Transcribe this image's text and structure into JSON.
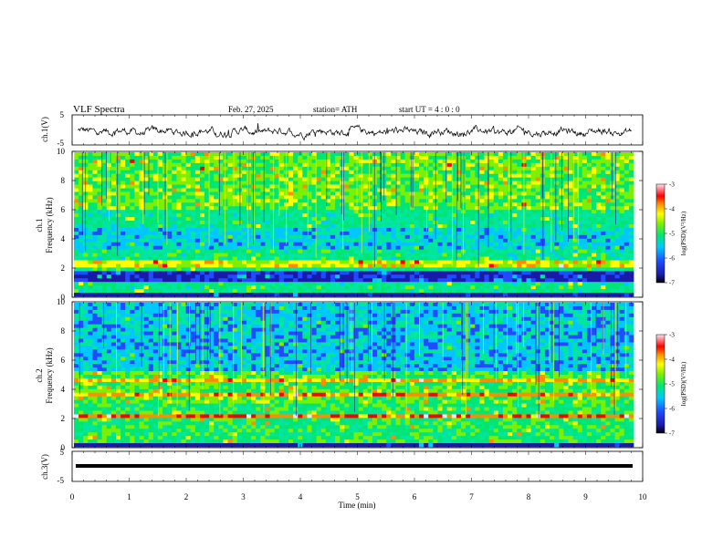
{
  "header": {
    "title": "VLF  Spectra",
    "date": "Feb. 27, 2025",
    "station": "station= ATH",
    "start": "start  UT  =   4  : 0  : 0"
  },
  "chart_data": [
    {
      "type": "line",
      "panel": "ch1-waveform",
      "ylabel": "ch.1(V)",
      "ylim": [
        -5,
        5
      ],
      "yticks": [
        "5",
        "-5"
      ],
      "xlim": [
        0,
        10
      ],
      "trace_color": "#000000"
    },
    {
      "type": "heatmap",
      "panel": "ch1-spectrogram",
      "ylabel_line1": "ch.1",
      "ylabel_line2": "Frequency  (kHz)",
      "ylim": [
        0,
        10
      ],
      "yticks": [
        "0",
        "2",
        "4",
        "6",
        "8",
        "10"
      ],
      "xlim": [
        0,
        10
      ],
      "colorbar": {
        "label": "log(PSD)(V²/Hz)",
        "range": [
          -7,
          -3
        ],
        "ticks": [
          "-3",
          "-4",
          "-5",
          "-6",
          "-7"
        ]
      }
    },
    {
      "type": "heatmap",
      "panel": "ch2-spectrogram",
      "ylabel_line1": "ch.2",
      "ylabel_line2": "Frequency  (kHz)",
      "ylim": [
        0,
        10
      ],
      "yticks": [
        "0",
        "2",
        "4",
        "6",
        "8",
        "10"
      ],
      "xlim": [
        0,
        10
      ],
      "colorbar": {
        "label": "log(PSD)(V²/Hz)",
        "range": [
          -7,
          -3
        ],
        "ticks": [
          "-3",
          "-4",
          "-5",
          "-6",
          "-7"
        ]
      }
    },
    {
      "type": "line",
      "panel": "ch3-waveform",
      "ylabel": "ch.3(V)",
      "ylim": [
        -5,
        5
      ],
      "yticks": [
        "5",
        "-5"
      ],
      "xlim": [
        0,
        10
      ],
      "trace_color": "#000000"
    }
  ],
  "xaxis": {
    "label": "Time  (min)",
    "ticks": [
      "0",
      "1",
      "2",
      "3",
      "4",
      "5",
      "6",
      "7",
      "8",
      "9",
      "10"
    ]
  }
}
